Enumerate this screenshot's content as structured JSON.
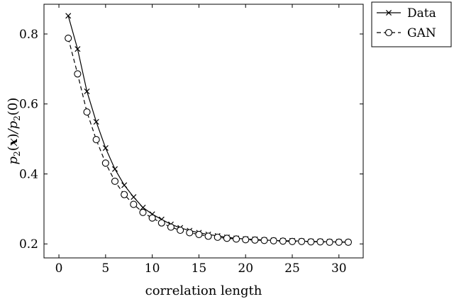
{
  "chart_data": {
    "type": "line",
    "xlabel": "correlation length",
    "ylabel": "p₂(x)/p₂(0)",
    "ylabel_parts": {
      "p1": "p",
      "s1": "2",
      "x": "x",
      "mid": "/p",
      "s2": "2",
      "end": "(0)"
    },
    "xlim": [
      -1.6,
      32.6
    ],
    "ylim": [
      0.16,
      0.885
    ],
    "xticks": [
      0,
      5,
      10,
      15,
      20,
      25,
      30
    ],
    "yticks": [
      0.2,
      0.4,
      0.6,
      0.8
    ],
    "ytick_labels": [
      "0.2",
      "0.4",
      "0.6",
      "0.8"
    ],
    "legend_position": "outside-top-right",
    "grid": false,
    "x": [
      1,
      2,
      3,
      4,
      5,
      6,
      7,
      8,
      9,
      10,
      11,
      12,
      13,
      14,
      15,
      16,
      17,
      18,
      19,
      20,
      21,
      22,
      23,
      24,
      25,
      26,
      27,
      28,
      29,
      30,
      31
    ],
    "series": [
      {
        "name": "Data",
        "marker": "x",
        "line": "solid",
        "values": [
          0.852,
          0.757,
          0.636,
          0.549,
          0.474,
          0.414,
          0.368,
          0.334,
          0.304,
          0.285,
          0.27,
          0.256,
          0.246,
          0.238,
          0.232,
          0.227,
          0.223,
          0.219,
          0.216,
          0.214,
          0.213,
          0.211,
          0.21,
          0.209,
          0.209,
          0.208,
          0.207,
          0.207,
          0.206,
          0.206,
          0.205
        ]
      },
      {
        "name": "GAN",
        "marker": "o",
        "line": "dashed",
        "values": [
          0.788,
          0.686,
          0.577,
          0.498,
          0.431,
          0.379,
          0.341,
          0.313,
          0.29,
          0.274,
          0.26,
          0.248,
          0.239,
          0.232,
          0.227,
          0.222,
          0.219,
          0.216,
          0.214,
          0.212,
          0.211,
          0.21,
          0.209,
          0.208,
          0.207,
          0.207,
          0.206,
          0.206,
          0.205,
          0.205,
          0.205
        ]
      }
    ]
  }
}
